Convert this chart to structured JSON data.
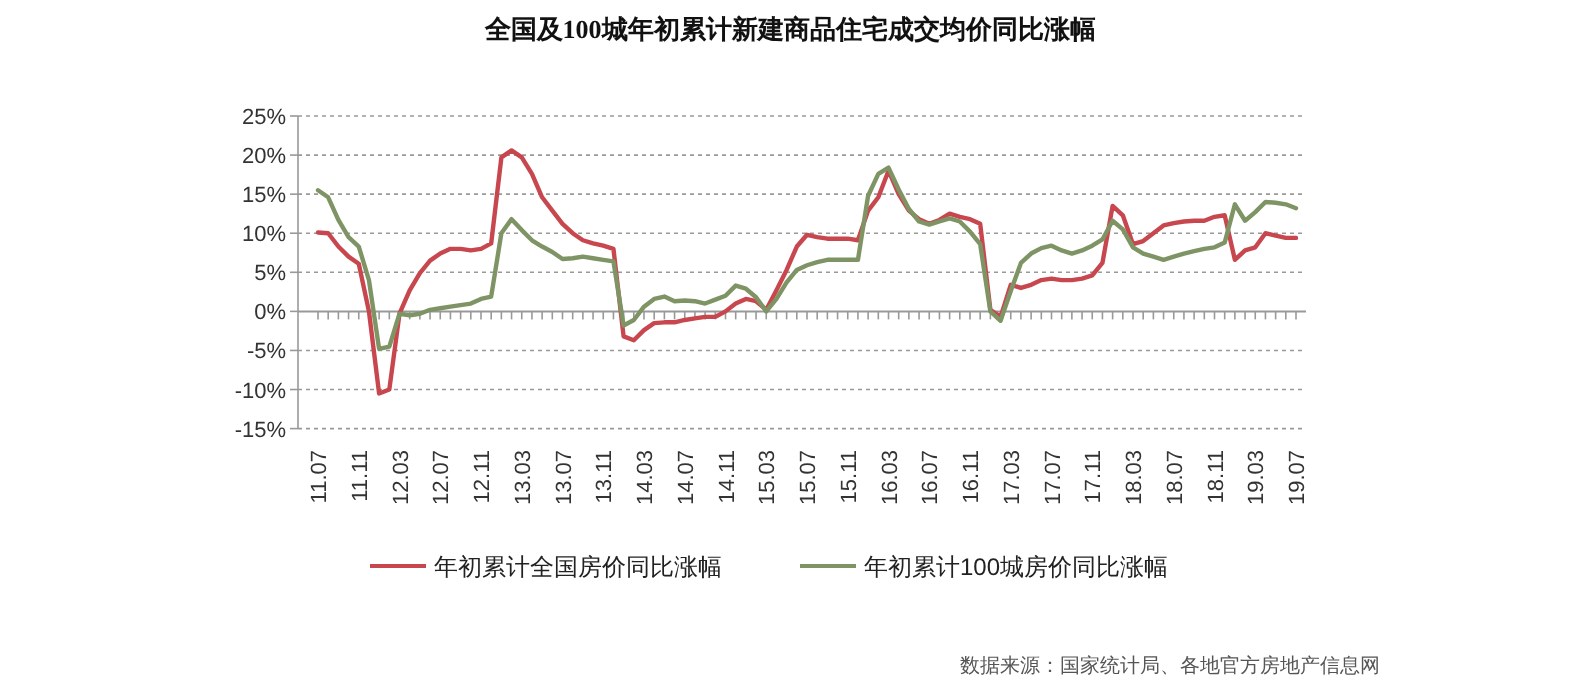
{
  "chart_data": {
    "type": "line",
    "title": "全国及100城年初累计新建商品住宅成交均价同比涨幅",
    "categories": [
      "11.07",
      null,
      null,
      null,
      "11.11",
      null,
      null,
      null,
      "12.03",
      null,
      null,
      null,
      "12.07",
      null,
      null,
      null,
      "12.11",
      null,
      null,
      null,
      "13.03",
      null,
      null,
      null,
      "13.07",
      null,
      null,
      null,
      "13.11",
      null,
      null,
      null,
      "14.03",
      null,
      null,
      null,
      "14.07",
      null,
      null,
      null,
      "14.11",
      null,
      null,
      null,
      "15.03",
      null,
      null,
      null,
      "15.07",
      null,
      null,
      null,
      "15.11",
      null,
      null,
      null,
      "16.03",
      null,
      null,
      null,
      "16.07",
      null,
      null,
      null,
      "16.11",
      null,
      null,
      null,
      "17.03",
      null,
      null,
      null,
      "17.07",
      null,
      null,
      null,
      "17.11",
      null,
      null,
      null,
      "18.03",
      null,
      null,
      null,
      "18.07",
      null,
      null,
      null,
      "18.11",
      null,
      null,
      null,
      "19.03",
      null,
      null,
      null,
      "19.07"
    ],
    "series": [
      {
        "name": "年初累计全国房价同比涨幅",
        "color": "#c8474f",
        "values": [
          10.1,
          10,
          8.3,
          7,
          6.1,
          0,
          -10.5,
          -10,
          -0.3,
          2.7,
          4.9,
          6.5,
          7.4,
          8,
          8,
          7.8,
          8,
          8.7,
          19.7,
          20.6,
          19.7,
          17.6,
          14.6,
          12.9,
          11.2,
          10,
          9.1,
          8.7,
          8.4,
          8,
          -3.2,
          -3.7,
          -2.4,
          -1.5,
          -1.4,
          -1.4,
          -1.1,
          -0.9,
          -0.7,
          -0.7,
          0,
          1,
          1.6,
          1.3,
          0.2,
          2.7,
          5.3,
          8.3,
          9.8,
          9.5,
          9.3,
          9.3,
          9.3,
          9.1,
          12.9,
          14.6,
          18,
          15,
          12.9,
          11.8,
          11.2,
          11.7,
          12.5,
          12.1,
          11.8,
          11.2,
          0.2,
          -0.7,
          3.4,
          3,
          3.4,
          4,
          4.2,
          4,
          4,
          4.2,
          4.6,
          6.2,
          13.5,
          12.3,
          8.6,
          9,
          10,
          11,
          11.3,
          11.5,
          11.6,
          11.6,
          12.1,
          12.3,
          6.6,
          7.8,
          8.2,
          10,
          9.7,
          9.4,
          9.4
        ]
      },
      {
        "name": "年初累计100城房价同比涨幅",
        "color": "#7f9465",
        "values": [
          15.5,
          14.6,
          11.7,
          9.5,
          8.3,
          4,
          -4.8,
          -4.5,
          -0.3,
          -0.5,
          -0.3,
          0.2,
          0.4,
          0.6,
          0.8,
          1,
          1.6,
          1.9,
          10,
          11.8,
          10.4,
          9.1,
          8.3,
          7.6,
          6.7,
          6.8,
          7,
          6.8,
          6.6,
          6.4,
          -1.8,
          -1.1,
          0.6,
          1.6,
          1.9,
          1.3,
          1.4,
          1.3,
          1,
          1.5,
          2,
          3.3,
          2.9,
          1.8,
          0,
          1.6,
          3.7,
          5.3,
          5.9,
          6.3,
          6.6,
          6.6,
          6.6,
          6.6,
          14.8,
          17.6,
          18.4,
          15.6,
          13.1,
          11.5,
          11.1,
          11.5,
          11.9,
          11.5,
          10.2,
          8.6,
          0,
          -1.2,
          2.6,
          6.2,
          7.4,
          8.1,
          8.4,
          7.8,
          7.4,
          7.8,
          8.4,
          9.2,
          11.6,
          10.5,
          8.2,
          7.4,
          7,
          6.6,
          7,
          7.4,
          7.7,
          8,
          8.2,
          8.8,
          13.7,
          11.6,
          12.7,
          14,
          13.9,
          13.7,
          13.2
        ]
      }
    ],
    "ylim": [
      -15,
      25
    ],
    "yticks": [
      {
        "value": -15,
        "label": "-15%"
      },
      {
        "value": -10,
        "label": "-10%"
      },
      {
        "value": -5,
        "label": "-5%"
      },
      {
        "value": 0,
        "label": "0%"
      },
      {
        "value": 5,
        "label": "5%"
      },
      {
        "value": 10,
        "label": "10%"
      },
      {
        "value": 15,
        "label": "15%"
      },
      {
        "value": 20,
        "label": "20%"
      },
      {
        "value": 25,
        "label": "25%"
      }
    ],
    "grid": "y",
    "legend": "bottom",
    "line_style": "solid",
    "annotations": [
      "数据来源：国家统计局、各地官方房地产信息网"
    ]
  }
}
